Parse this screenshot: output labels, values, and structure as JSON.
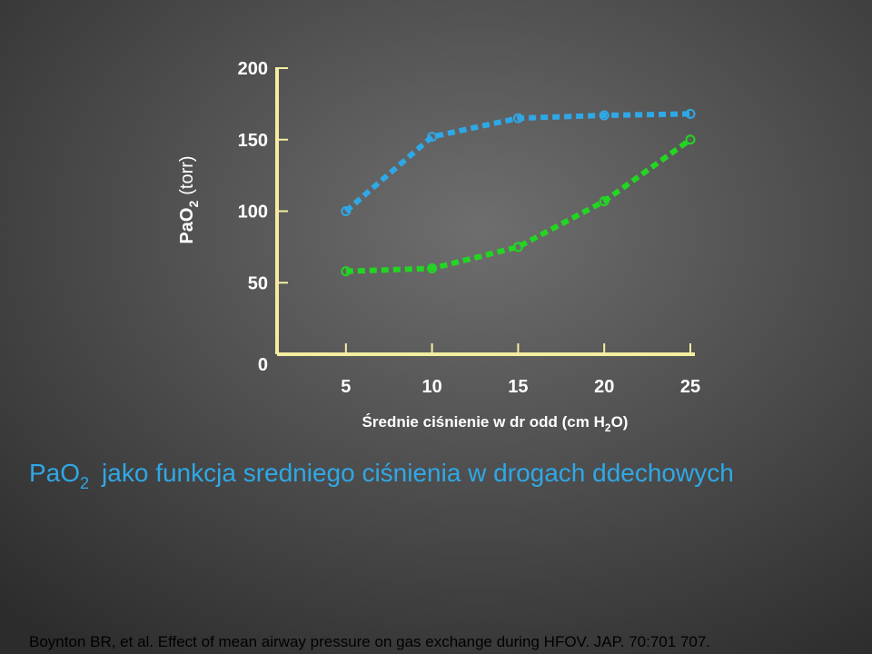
{
  "chart_data": {
    "type": "line",
    "y_label": {
      "main": "PaO",
      "sub": "2",
      "rest": "(torr)"
    },
    "x_label": {
      "main": "Średnie ciśnienie w dr odd (cm H",
      "sub": "2",
      "rest": "O)"
    },
    "x": [
      5,
      10,
      15,
      20,
      25
    ],
    "series": [
      {
        "color": "#2fa8e6",
        "values": [
          100,
          152,
          165,
          167,
          168
        ]
      },
      {
        "color": "#22d622",
        "values": [
          58,
          60,
          75,
          107,
          150
        ]
      }
    ],
    "xlim": [
      1,
      25
    ],
    "xticks": [
      5,
      10,
      15,
      20,
      25
    ],
    "ylim": [
      0,
      200
    ],
    "yticks": [
      0,
      50,
      100,
      150,
      200
    ],
    "axis_color": "#f3eea0"
  },
  "heading": {
    "main": "PaO",
    "sub": "2",
    "rest": "jako funkcja sredniego ciśnienia w drogach ddechowych"
  },
  "citation": "Boynton BR, et al. Effect of mean airway pressure on gas exchange during HFOV. JAP. 70:701 707."
}
